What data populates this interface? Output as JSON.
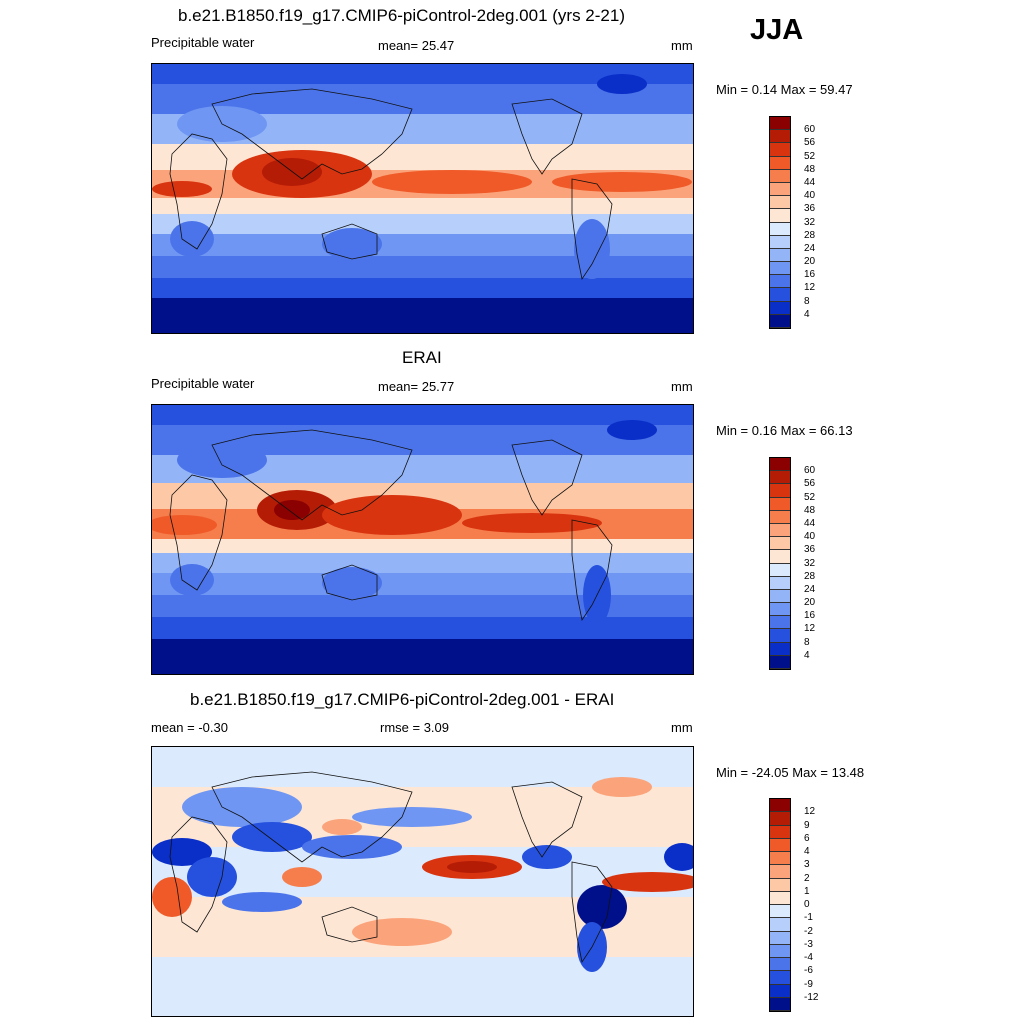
{
  "season": "JJA",
  "panels": [
    {
      "id": "model",
      "title": "b.e21.B1850.f19_g17.CMIP6-piControl-2deg.001 (yrs 2-21)",
      "left_label": "Precipitable water",
      "center_label": "mean=  25.47",
      "units": "mm",
      "minmax": "Min =   0.14 Max =  59.47",
      "colorbar_labels": [
        "60",
        "56",
        "52",
        "48",
        "44",
        "40",
        "36",
        "32",
        "28",
        "24",
        "20",
        "16",
        "12",
        "8",
        "4"
      ]
    },
    {
      "id": "obs",
      "title": "ERAI",
      "left_label": "Precipitable water",
      "center_label": "mean=  25.77",
      "units": "mm",
      "minmax": "Min =   0.16 Max =  66.13",
      "colorbar_labels": [
        "60",
        "56",
        "52",
        "48",
        "44",
        "40",
        "36",
        "32",
        "28",
        "24",
        "20",
        "16",
        "12",
        "8",
        "4"
      ]
    },
    {
      "id": "diff",
      "title": "b.e21.B1850.f19_g17.CMIP6-piControl-2deg.001 - ERAI",
      "left_label": "mean =  -0.30",
      "center_label": "rmse =   3.09",
      "units": "mm",
      "minmax": "Min = -24.05 Max =  13.48",
      "colorbar_labels": [
        "12",
        "9",
        "6",
        "4",
        "3",
        "2",
        "1",
        "0",
        "-1",
        "-2",
        "-3",
        "-4",
        "-6",
        "-9",
        "-12"
      ]
    }
  ],
  "colors": {
    "abs_scale": [
      "#8b0000",
      "#b51c06",
      "#d93410",
      "#ef5a28",
      "#f67e4c",
      "#fba37a",
      "#fdc8a6",
      "#fde6d4",
      "#dbeafc",
      "#b7d0fb",
      "#93b5f8",
      "#6f96f2",
      "#4c74ea",
      "#2651de",
      "#0a2ec8",
      "#000f8a"
    ],
    "diff_scale": [
      "#8b0000",
      "#b51c06",
      "#d93410",
      "#ef5a28",
      "#f67e4c",
      "#fba37a",
      "#fdc8a6",
      "#fde6d4",
      "#dbeafc",
      "#b7d0fb",
      "#93b5f8",
      "#6f96f2",
      "#4c74ea",
      "#2651de",
      "#0a2ec8",
      "#000f8a"
    ]
  }
}
